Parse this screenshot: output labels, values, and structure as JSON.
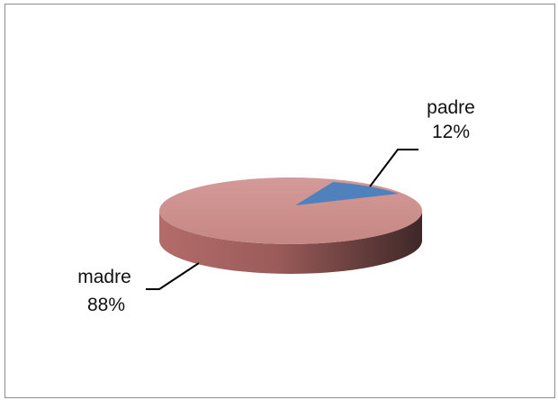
{
  "chart_data": {
    "type": "pie",
    "title": "",
    "style": "3d",
    "slices": [
      {
        "label": "padre",
        "value": 12,
        "value_label": "12%",
        "color": "#4f81bd"
      },
      {
        "label": "madre",
        "value": 88,
        "value_label": "88%",
        "color": "#c0504d"
      }
    ],
    "legend": "none",
    "data_labels": "outside-with-leader-lines"
  }
}
